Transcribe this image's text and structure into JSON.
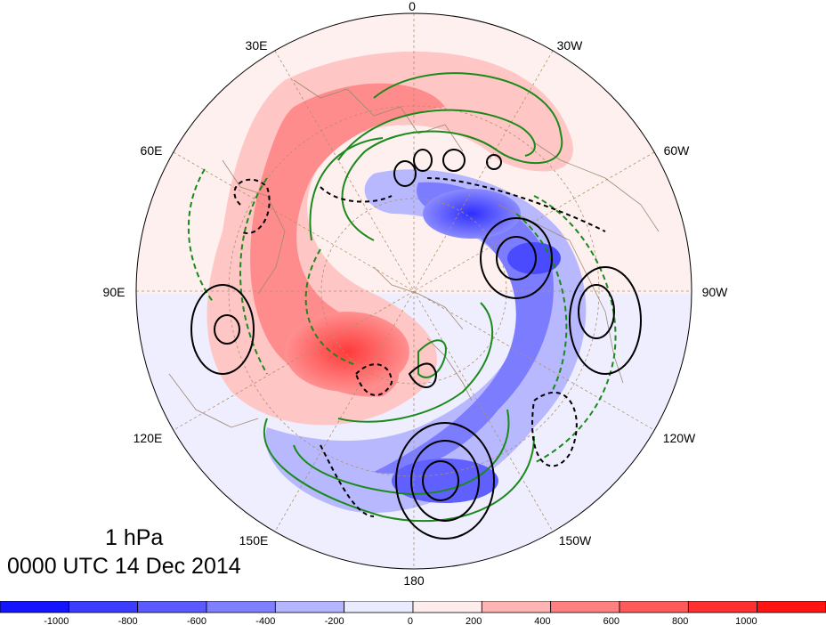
{
  "map": {
    "level": "1 hPa",
    "time": "0000 UTC 14 Dec 2014",
    "longitude_labels": [
      "0",
      "30W",
      "60W",
      "90W",
      "120W",
      "150W",
      "180",
      "150E",
      "120E",
      "90E",
      "60E",
      "30E"
    ],
    "projection": "polar stereographic (north polar)",
    "contour_colors": {
      "positive_black": "#000000",
      "green": "#1a8a1a"
    }
  },
  "colorbar": {
    "tick_labels": [
      "-1000",
      "-800",
      "-600",
      "-400",
      "-200",
      "0",
      "200",
      "400",
      "600",
      "800",
      "1000"
    ],
    "colors": [
      "#1414ff",
      "#3c3cff",
      "#5a5aff",
      "#8080ff",
      "#b4b4ff",
      "#ebebff",
      "#ffecec",
      "#ffb4b4",
      "#ff8080",
      "#ff5a5a",
      "#ff3030",
      "#ff1414"
    ]
  }
}
